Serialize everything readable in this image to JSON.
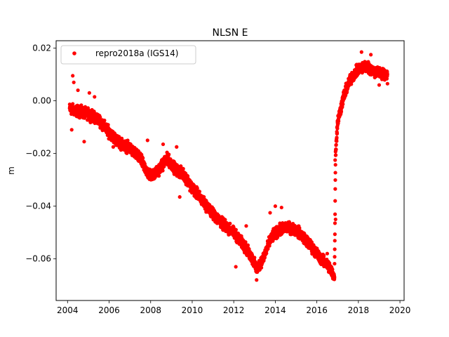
{
  "chart_data": {
    "type": "scatter",
    "title": "NLSN E",
    "xlabel": "",
    "ylabel": "m",
    "xlim": [
      2003.45,
      2020.2
    ],
    "ylim": [
      -0.0758,
      0.0228
    ],
    "xticks": [
      2004,
      2006,
      2008,
      2010,
      2012,
      2014,
      2016,
      2018,
      2020
    ],
    "xtick_labels": [
      "2004",
      "2006",
      "2008",
      "2010",
      "2012",
      "2014",
      "2016",
      "2018",
      "2020"
    ],
    "yticks": [
      0.02,
      0.0,
      -0.02,
      -0.04,
      -0.06
    ],
    "ytick_labels": [
      "0.02",
      "0.00",
      "−0.02",
      "−0.04",
      "−0.06"
    ],
    "grid": false,
    "legend_position": "upper left",
    "series": [
      {
        "name": "repro2018a (IGS14)",
        "color": "#ff0000",
        "marker": "circle",
        "trend": {
          "x": [
            2004.1,
            2004.5,
            2005.0,
            2005.5,
            2006.0,
            2006.5,
            2007.0,
            2007.5,
            2007.9,
            2008.2,
            2008.5,
            2008.8,
            2009.2,
            2009.6,
            2010.0,
            2010.5,
            2011.0,
            2011.5,
            2012.0,
            2012.5,
            2012.9,
            2013.1,
            2013.4,
            2013.8,
            2014.2,
            2014.6,
            2015.0,
            2015.4,
            2015.8,
            2016.2,
            2016.6,
            2016.85,
            2016.9,
            2017.0,
            2017.3,
            2017.6,
            2018.0,
            2018.4,
            2018.8,
            2019.4
          ],
          "y": [
            -0.003,
            -0.004,
            -0.005,
            -0.007,
            -0.012,
            -0.016,
            -0.018,
            -0.022,
            -0.028,
            -0.028,
            -0.025,
            -0.022,
            -0.026,
            -0.028,
            -0.033,
            -0.038,
            -0.043,
            -0.047,
            -0.05,
            -0.055,
            -0.06,
            -0.064,
            -0.06,
            -0.052,
            -0.049,
            -0.048,
            -0.049,
            -0.052,
            -0.056,
            -0.06,
            -0.063,
            -0.067,
            -0.02,
            -0.008,
            0.002,
            0.008,
            0.012,
            0.013,
            0.011,
            0.01
          ]
        },
        "scatter_spread": 0.0022,
        "outliers": [
          {
            "x": 2004.25,
            "y": 0.0095
          },
          {
            "x": 2004.3,
            "y": 0.007
          },
          {
            "x": 2004.5,
            "y": 0.004
          },
          {
            "x": 2004.2,
            "y": -0.011
          },
          {
            "x": 2004.8,
            "y": -0.0155
          },
          {
            "x": 2005.05,
            "y": 0.003
          },
          {
            "x": 2005.3,
            "y": 0.0015
          },
          {
            "x": 2006.2,
            "y": -0.0175
          },
          {
            "x": 2007.85,
            "y": -0.015
          },
          {
            "x": 2008.6,
            "y": -0.0165
          },
          {
            "x": 2009.25,
            "y": -0.0175
          },
          {
            "x": 2009.4,
            "y": -0.0365
          },
          {
            "x": 2011.1,
            "y": -0.0425
          },
          {
            "x": 2012.1,
            "y": -0.063
          },
          {
            "x": 2012.6,
            "y": -0.0475
          },
          {
            "x": 2013.1,
            "y": -0.068
          },
          {
            "x": 2013.75,
            "y": -0.0425
          },
          {
            "x": 2014.3,
            "y": -0.0405
          },
          {
            "x": 2014.0,
            "y": -0.04
          },
          {
            "x": 2016.5,
            "y": -0.058
          },
          {
            "x": 2016.9,
            "y": -0.045
          },
          {
            "x": 2016.88,
            "y": -0.0225
          },
          {
            "x": 2018.15,
            "y": 0.0185
          },
          {
            "x": 2018.6,
            "y": 0.0175
          },
          {
            "x": 2019.0,
            "y": 0.006
          },
          {
            "x": 2019.4,
            "y": 0.0065
          }
        ]
      }
    ]
  }
}
